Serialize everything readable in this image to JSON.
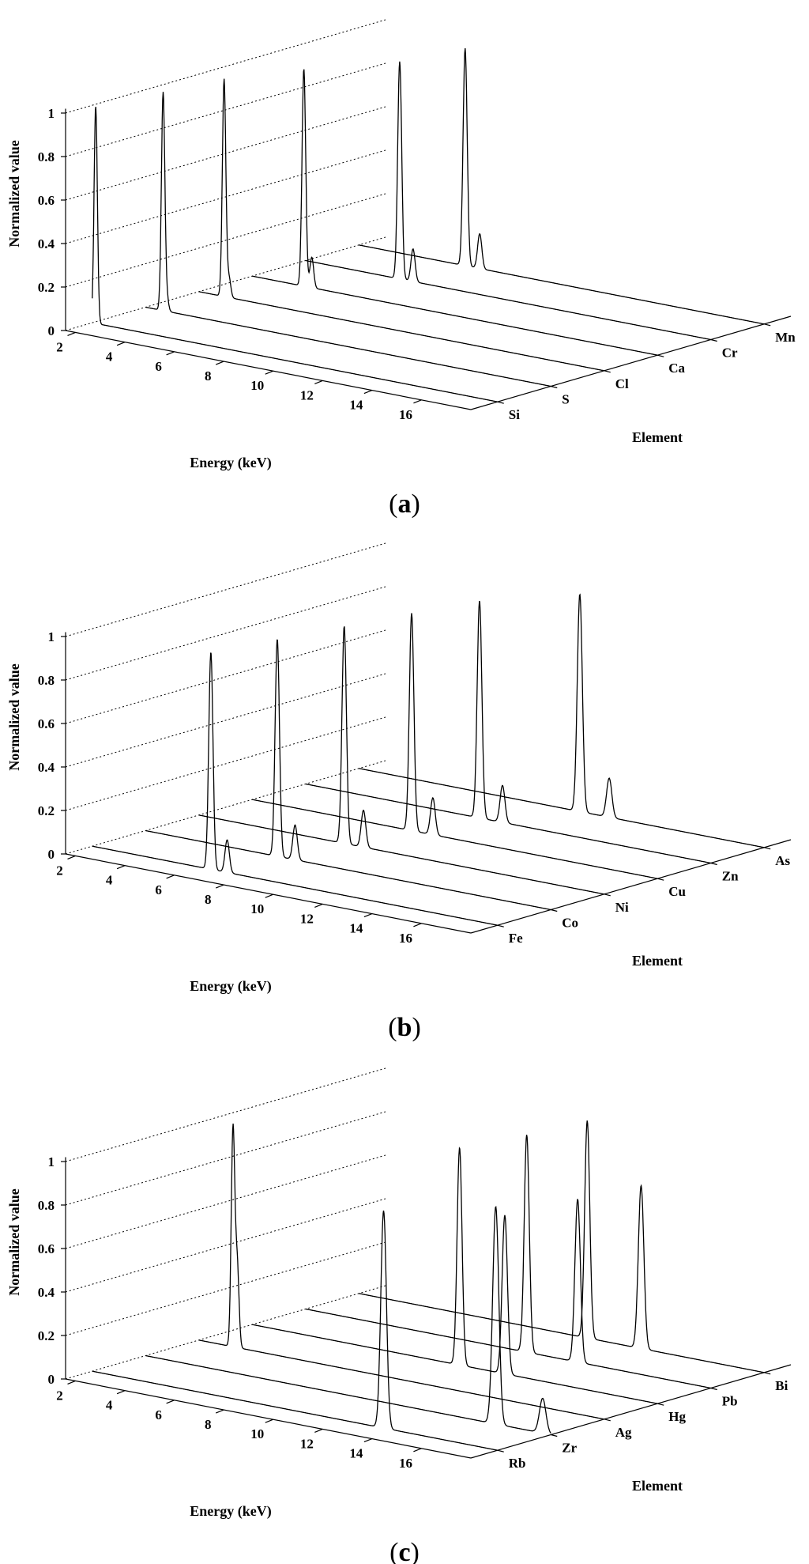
{
  "figure": {
    "panel_labels": [
      "a",
      "b",
      "c"
    ],
    "open_paren": "(",
    "close_paren": ")"
  },
  "chart_data": [
    {
      "panel": "a",
      "type": "line",
      "title": "",
      "xlabel": "Energy (keV)",
      "ylabel": "Normalized value",
      "zlabel": "Element",
      "xlim": [
        1.6,
        18
      ],
      "ylim": [
        0,
        1
      ],
      "x_ticks": [
        2,
        4,
        6,
        8,
        10,
        12,
        14,
        16
      ],
      "y_ticks": [
        0,
        0.2,
        0.4,
        0.6,
        0.8,
        1
      ],
      "y_tick_labels": [
        "0",
        "0.2",
        "0.4",
        "0.6",
        "0.8",
        "1"
      ],
      "grid": true,
      "series": [
        {
          "name": "Si",
          "peaks": [
            {
              "energy": 1.74,
              "height": 1.0
            }
          ]
        },
        {
          "name": "S",
          "peaks": [
            {
              "energy": 2.31,
              "height": 1.0
            },
            {
              "energy": 2.46,
              "height": 0.06
            }
          ]
        },
        {
          "name": "Cl",
          "peaks": [
            {
              "energy": 2.62,
              "height": 1.0
            },
            {
              "energy": 2.82,
              "height": 0.09
            }
          ]
        },
        {
          "name": "Ca",
          "peaks": [
            {
              "energy": 3.69,
              "height": 1.0
            },
            {
              "energy": 4.01,
              "height": 0.14
            }
          ]
        },
        {
          "name": "Cr",
          "peaks": [
            {
              "energy": 5.41,
              "height": 1.0
            },
            {
              "energy": 5.95,
              "height": 0.15
            }
          ]
        },
        {
          "name": "Mn",
          "peaks": [
            {
              "energy": 5.9,
              "height": 1.0
            },
            {
              "energy": 6.49,
              "height": 0.16
            }
          ]
        }
      ]
    },
    {
      "panel": "b",
      "type": "line",
      "title": "",
      "xlabel": "Energy (keV)",
      "ylabel": "Normalized value",
      "zlabel": "Element",
      "xlim": [
        1.6,
        18
      ],
      "ylim": [
        0,
        1
      ],
      "x_ticks": [
        2,
        4,
        6,
        8,
        10,
        12,
        14,
        16
      ],
      "y_ticks": [
        0,
        0.2,
        0.4,
        0.6,
        0.8,
        1
      ],
      "y_tick_labels": [
        "0",
        "0.2",
        "0.4",
        "0.6",
        "0.8",
        "1"
      ],
      "grid": true,
      "series": [
        {
          "name": "Fe",
          "peaks": [
            {
              "energy": 6.4,
              "height": 1.0
            },
            {
              "energy": 7.06,
              "height": 0.15
            }
          ]
        },
        {
          "name": "Co",
          "peaks": [
            {
              "energy": 6.93,
              "height": 1.0
            },
            {
              "energy": 7.65,
              "height": 0.16
            }
          ]
        },
        {
          "name": "Ni",
          "peaks": [
            {
              "energy": 7.48,
              "height": 1.0
            },
            {
              "energy": 8.26,
              "height": 0.17
            }
          ]
        },
        {
          "name": "Cu",
          "peaks": [
            {
              "energy": 8.05,
              "height": 1.0
            },
            {
              "energy": 8.91,
              "height": 0.17
            }
          ]
        },
        {
          "name": "Zn",
          "peaks": [
            {
              "energy": 8.64,
              "height": 1.0
            },
            {
              "energy": 9.57,
              "height": 0.17
            }
          ]
        },
        {
          "name": "As",
          "peaks": [
            {
              "energy": 10.54,
              "height": 1.0
            },
            {
              "energy": 11.73,
              "height": 0.18
            }
          ]
        }
      ]
    },
    {
      "panel": "c",
      "type": "line",
      "title": "",
      "xlabel": "Energy (keV)",
      "ylabel": "Normalized value",
      "zlabel": "Element",
      "xlim": [
        1.6,
        18
      ],
      "ylim": [
        0,
        1
      ],
      "x_ticks": [
        2,
        4,
        6,
        8,
        10,
        12,
        14,
        16
      ],
      "y_ticks": [
        0,
        0.2,
        0.4,
        0.6,
        0.8,
        1
      ],
      "y_tick_labels": [
        "0",
        "0.2",
        "0.4",
        "0.6",
        "0.8",
        "1"
      ],
      "grid": true,
      "series": [
        {
          "name": "Rb",
          "peaks": [
            {
              "energy": 13.39,
              "height": 1.0
            }
          ]
        },
        {
          "name": "Zr",
          "peaks": [
            {
              "energy": 15.77,
              "height": 1.0
            },
            {
              "energy": 17.67,
              "height": 0.16
            }
          ]
        },
        {
          "name": "Ag",
          "peaks": [
            {
              "energy": 2.98,
              "height": 1.0
            },
            {
              "energy": 3.15,
              "height": 0.38
            }
          ]
        },
        {
          "name": "Hg",
          "peaks": [
            {
              "energy": 9.99,
              "height": 1.0
            },
            {
              "energy": 11.82,
              "height": 0.73
            }
          ]
        },
        {
          "name": "Pb",
          "peaks": [
            {
              "energy": 10.55,
              "height": 1.0
            },
            {
              "energy": 12.61,
              "height": 0.75
            }
          ]
        },
        {
          "name": "Bi",
          "peaks": [
            {
              "energy": 10.84,
              "height": 1.0
            },
            {
              "energy": 13.02,
              "height": 0.75
            }
          ]
        }
      ]
    }
  ]
}
